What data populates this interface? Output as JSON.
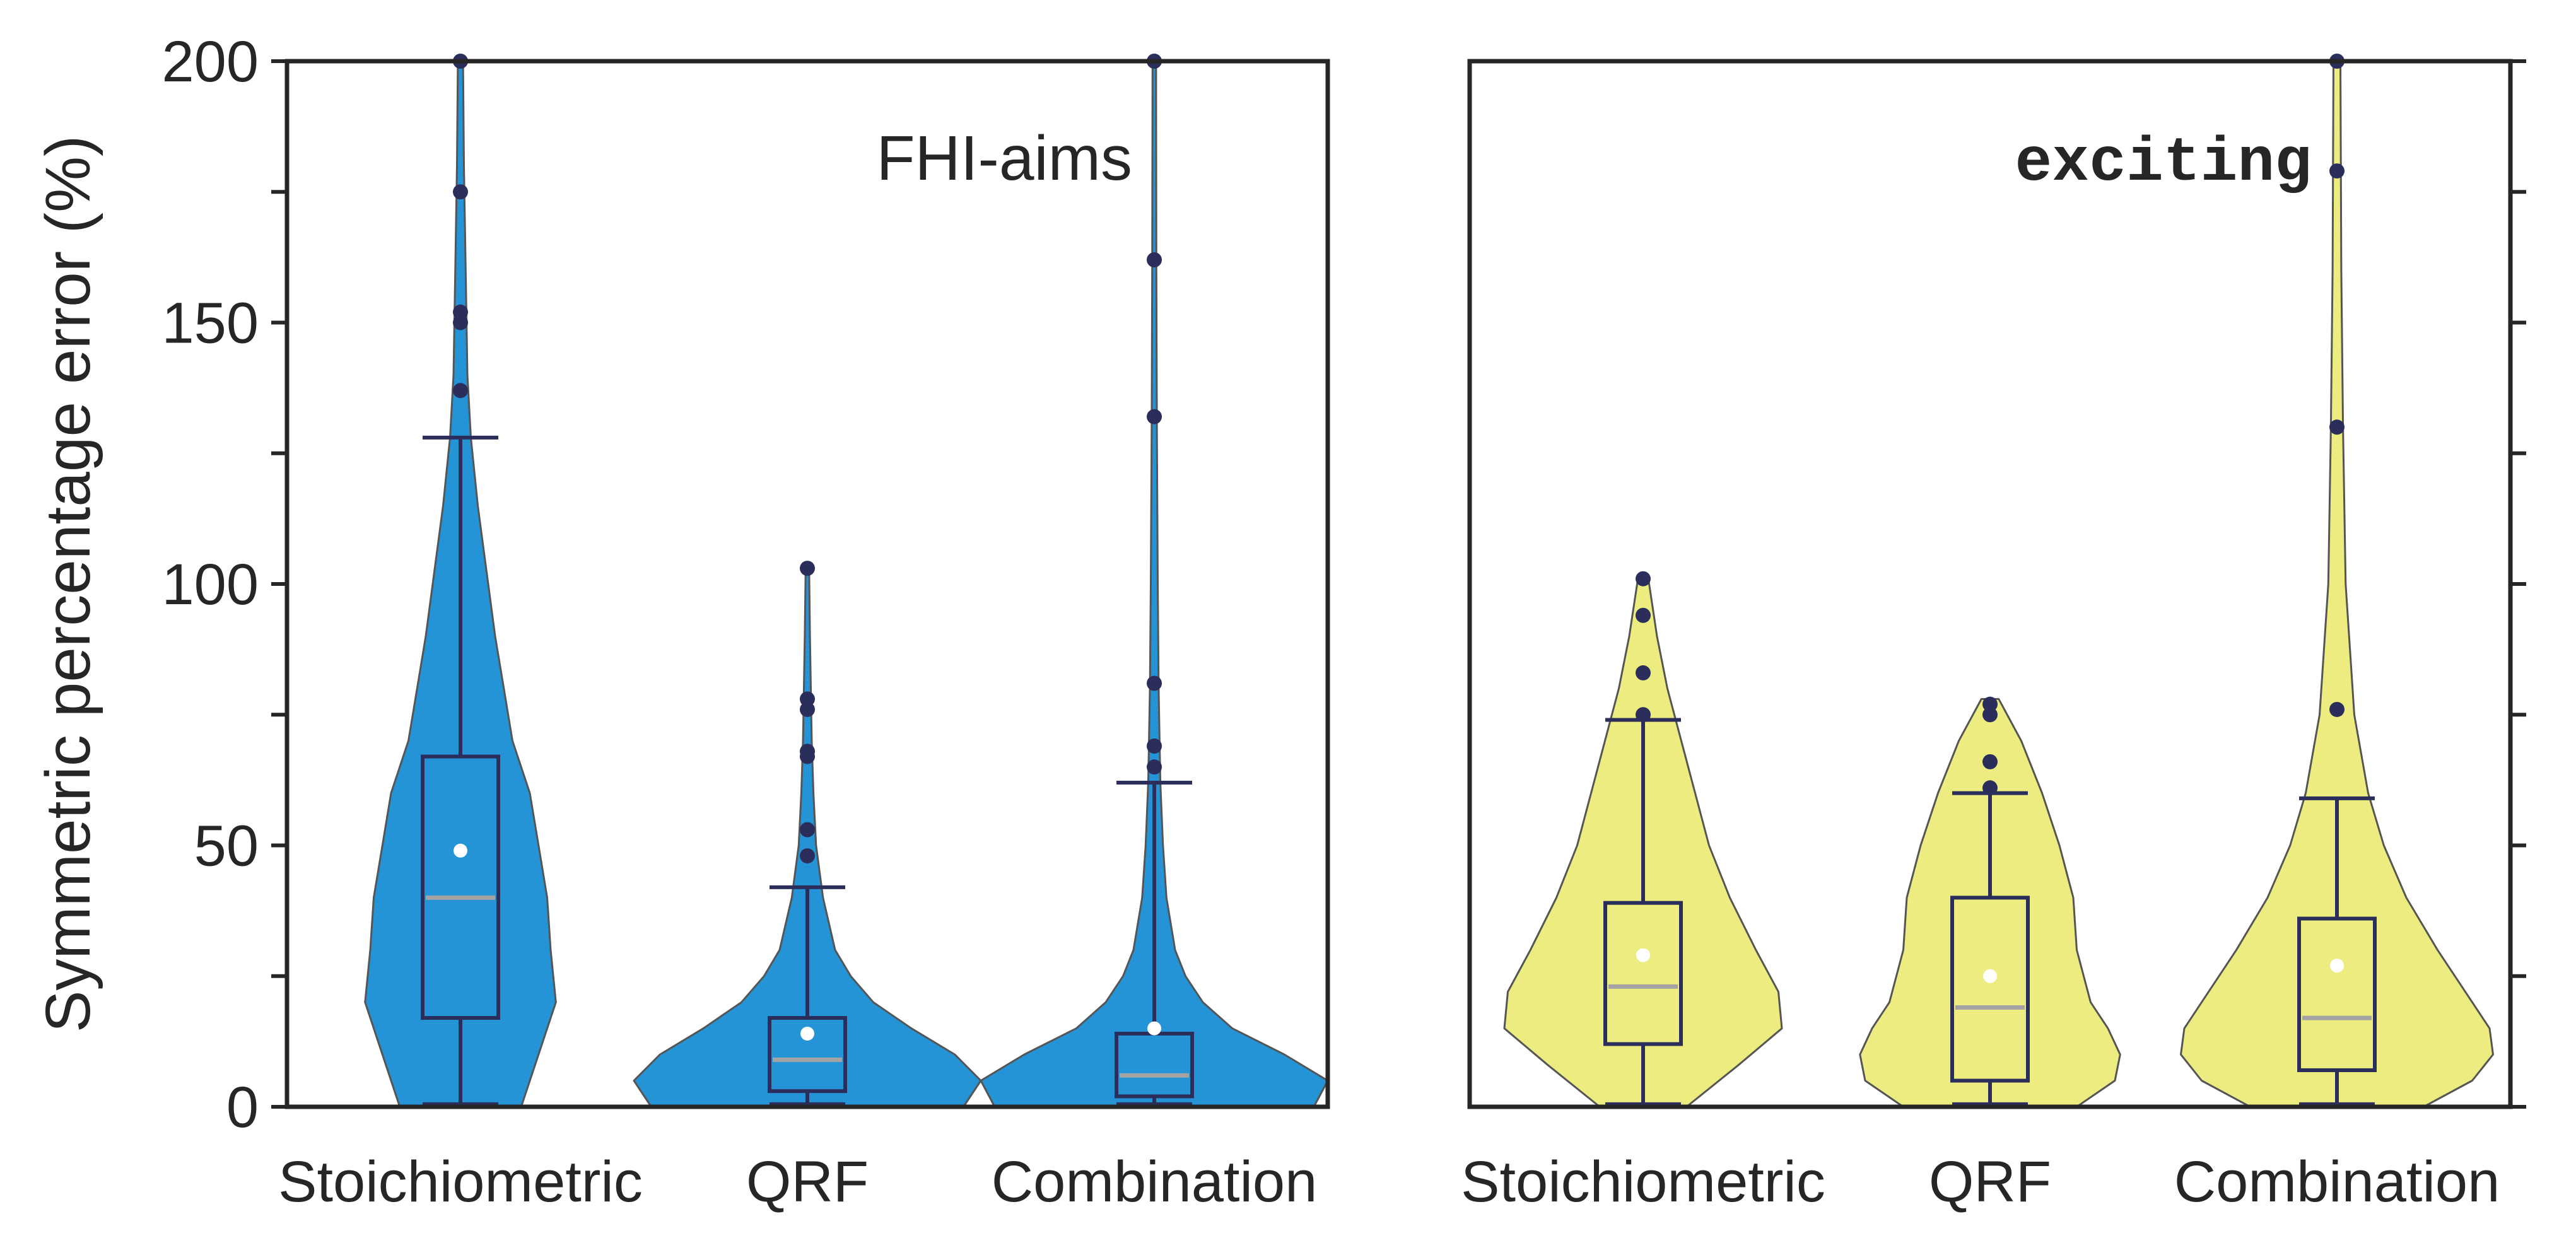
{
  "chart_data": [
    {
      "type": "violin",
      "panel_label": "FHI-aims",
      "ylabel": "Symmetric percentage error (%)",
      "ylim": [
        0,
        200
      ],
      "yticks": [
        "0",
        "50",
        "100",
        "150",
        "200"
      ],
      "categories": [
        "Stoichiometric",
        "QRF",
        "Combination"
      ],
      "violin_color": "#2594d6",
      "series": [
        {
          "category": "Stoichiometric",
          "q1": 17,
          "median": 40,
          "q3": 67,
          "mean": 49,
          "whisker_low": 0.5,
          "whisker_high": 128,
          "outliers": [
            137,
            150,
            152,
            175,
            200
          ],
          "density": [
            [
              0,
              0.35
            ],
            [
              10,
              0.45
            ],
            [
              20,
              0.55
            ],
            [
              30,
              0.52
            ],
            [
              40,
              0.5
            ],
            [
              50,
              0.45
            ],
            [
              60,
              0.4
            ],
            [
              70,
              0.3
            ],
            [
              80,
              0.25
            ],
            [
              90,
              0.2
            ],
            [
              100,
              0.16
            ],
            [
              115,
              0.1
            ],
            [
              128,
              0.06
            ],
            [
              140,
              0.04
            ],
            [
              160,
              0.03
            ],
            [
              180,
              0.02
            ],
            [
              200,
              0.015
            ]
          ]
        },
        {
          "category": "QRF",
          "q1": 3,
          "median": 9,
          "q3": 17,
          "mean": 14,
          "whisker_low": 0.5,
          "whisker_high": 42,
          "outliers": [
            48,
            53,
            67,
            68,
            76,
            78,
            103
          ],
          "density": [
            [
              0,
              0.9
            ],
            [
              5,
              1.0
            ],
            [
              10,
              0.85
            ],
            [
              15,
              0.6
            ],
            [
              20,
              0.38
            ],
            [
              25,
              0.25
            ],
            [
              30,
              0.16
            ],
            [
              40,
              0.09
            ],
            [
              50,
              0.05
            ],
            [
              60,
              0.035
            ],
            [
              70,
              0.025
            ],
            [
              80,
              0.02
            ],
            [
              90,
              0.015
            ],
            [
              103,
              0.01
            ]
          ]
        },
        {
          "category": "Combination",
          "q1": 2,
          "median": 6,
          "q3": 14,
          "mean": 15,
          "whisker_low": 0.5,
          "whisker_high": 62,
          "outliers": [
            65,
            69,
            81,
            132,
            162,
            200
          ],
          "density": [
            [
              0,
              0.92
            ],
            [
              5,
              1.0
            ],
            [
              10,
              0.75
            ],
            [
              15,
              0.45
            ],
            [
              20,
              0.28
            ],
            [
              25,
              0.18
            ],
            [
              30,
              0.12
            ],
            [
              40,
              0.07
            ],
            [
              50,
              0.05
            ],
            [
              62,
              0.035
            ],
            [
              80,
              0.025
            ],
            [
              100,
              0.02
            ],
            [
              130,
              0.015
            ],
            [
              160,
              0.012
            ],
            [
              200,
              0.01
            ]
          ]
        }
      ]
    },
    {
      "type": "violin",
      "panel_label": "exciting",
      "ylim": [
        0,
        200
      ],
      "categories": [
        "Stoichiometric",
        "QRF",
        "Combination"
      ],
      "violin_color": "#ecec80",
      "series": [
        {
          "category": "Stoichiometric",
          "q1": 12,
          "median": 23,
          "q3": 39,
          "mean": 29,
          "whisker_low": 0.5,
          "whisker_high": 74,
          "outliers": [
            75,
            83,
            94,
            101
          ],
          "density": [
            [
              0,
              0.25
            ],
            [
              8,
              0.55
            ],
            [
              15,
              0.8
            ],
            [
              22,
              0.78
            ],
            [
              30,
              0.65
            ],
            [
              40,
              0.5
            ],
            [
              50,
              0.38
            ],
            [
              60,
              0.3
            ],
            [
              70,
              0.22
            ],
            [
              80,
              0.14
            ],
            [
              90,
              0.08
            ],
            [
              101,
              0.03
            ]
          ]
        },
        {
          "category": "QRF",
          "q1": 5,
          "median": 19,
          "q3": 40,
          "mean": 25,
          "whisker_low": 0.5,
          "whisker_high": 60,
          "outliers": [
            61,
            66,
            75,
            77
          ],
          "density": [
            [
              0,
              0.5
            ],
            [
              5,
              0.72
            ],
            [
              10,
              0.75
            ],
            [
              15,
              0.68
            ],
            [
              20,
              0.58
            ],
            [
              30,
              0.5
            ],
            [
              40,
              0.48
            ],
            [
              50,
              0.4
            ],
            [
              60,
              0.3
            ],
            [
              70,
              0.18
            ],
            [
              78,
              0.05
            ]
          ]
        },
        {
          "category": "Combination",
          "q1": 7,
          "median": 17,
          "q3": 36,
          "mean": 27,
          "whisker_low": 0.5,
          "whisker_high": 59,
          "outliers": [
            76,
            130,
            179,
            200
          ],
          "density": [
            [
              0,
              0.5
            ],
            [
              5,
              0.78
            ],
            [
              10,
              0.9
            ],
            [
              15,
              0.88
            ],
            [
              20,
              0.78
            ],
            [
              30,
              0.58
            ],
            [
              40,
              0.4
            ],
            [
              50,
              0.27
            ],
            [
              60,
              0.18
            ],
            [
              75,
              0.1
            ],
            [
              100,
              0.05
            ],
            [
              130,
              0.035
            ],
            [
              160,
              0.025
            ],
            [
              200,
              0.02
            ]
          ]
        }
      ]
    }
  ]
}
